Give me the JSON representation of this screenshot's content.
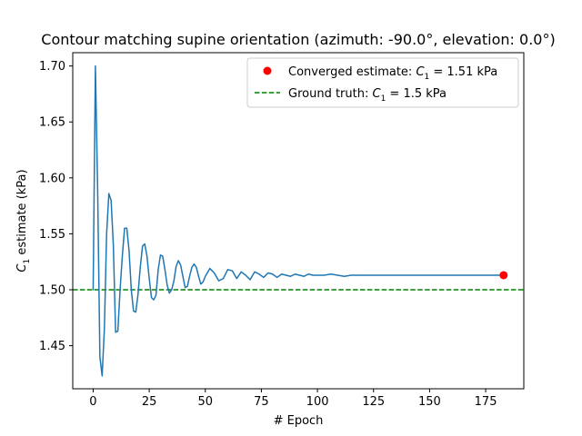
{
  "chart_data": {
    "type": "line",
    "title": "Contour matching supine orientation (azimuth: -90.0°, elevation: 0.0°)",
    "xlabel": "# Epoch",
    "ylabel": "C1 estimate (kPa)",
    "ylabel_parts": {
      "base": "C",
      "sub": "1",
      "rest": " estimate (kPa)"
    },
    "xlim": [
      -9.1,
      192
    ],
    "ylim": [
      1.4115,
      1.7119
    ],
    "xticks": [
      0,
      25,
      50,
      75,
      100,
      125,
      150,
      175
    ],
    "xtick_labels": [
      "0",
      "25",
      "50",
      "75",
      "100",
      "125",
      "150",
      "175"
    ],
    "yticks": [
      1.45,
      1.5,
      1.55,
      1.6,
      1.65,
      1.7
    ],
    "ytick_labels": [
      "1.45",
      "1.50",
      "1.55",
      "1.60",
      "1.65",
      "1.70"
    ],
    "grid": false,
    "legend_position": "top-right",
    "series": [
      {
        "name": "C1 estimate",
        "color": "#1f77b4",
        "style": "line",
        "x": [
          0,
          1,
          2,
          3,
          4,
          5,
          6,
          7,
          8,
          9,
          10,
          11,
          12,
          13,
          14,
          15,
          16,
          17,
          18,
          19,
          20,
          21,
          22,
          23,
          24,
          25,
          26,
          27,
          28,
          29,
          30,
          31,
          32,
          33,
          34,
          35,
          36,
          37,
          38,
          39,
          40,
          41,
          42,
          43,
          44,
          45,
          46,
          47,
          48,
          49,
          50,
          52,
          54,
          56,
          58,
          60,
          62,
          64,
          66,
          68,
          70,
          72,
          74,
          76,
          78,
          80,
          82,
          84,
          86,
          88,
          90,
          92,
          94,
          96,
          98,
          100,
          103,
          106,
          109,
          112,
          115,
          118,
          121,
          124,
          127,
          130,
          135,
          140,
          150,
          160,
          170,
          183
        ],
        "y": [
          1.5,
          1.7,
          1.59,
          1.44,
          1.423,
          1.465,
          1.55,
          1.586,
          1.58,
          1.54,
          1.462,
          1.463,
          1.5,
          1.53,
          1.555,
          1.555,
          1.535,
          1.5,
          1.481,
          1.48,
          1.496,
          1.52,
          1.539,
          1.541,
          1.53,
          1.51,
          1.493,
          1.491,
          1.495,
          1.518,
          1.531,
          1.53,
          1.518,
          1.504,
          1.497,
          1.5,
          1.508,
          1.521,
          1.526,
          1.522,
          1.512,
          1.502,
          1.503,
          1.512,
          1.52,
          1.523,
          1.52,
          1.512,
          1.505,
          1.507,
          1.512,
          1.519,
          1.515,
          1.508,
          1.51,
          1.518,
          1.517,
          1.51,
          1.516,
          1.513,
          1.509,
          1.516,
          1.514,
          1.511,
          1.515,
          1.514,
          1.511,
          1.514,
          1.513,
          1.512,
          1.514,
          1.513,
          1.512,
          1.514,
          1.513,
          1.513,
          1.513,
          1.514,
          1.513,
          1.512,
          1.513,
          1.513,
          1.513,
          1.513,
          1.513,
          1.513,
          1.513,
          1.513,
          1.513,
          1.513,
          1.513,
          1.513
        ]
      },
      {
        "name": "Converged estimate: C1 = 1.51 kPa",
        "name_parts": {
          "base": "Converged estimate: ",
          "var": "C",
          "sub": "1",
          "rest": " = 1.51 kPa"
        },
        "color": "#ff0000",
        "style": "point",
        "x": [
          183
        ],
        "y": [
          1.513
        ]
      },
      {
        "name": "Ground truth: C1 = 1.5 kPa",
        "name_parts": {
          "base": "Ground truth: ",
          "var": "C",
          "sub": "1",
          "rest": " = 1.5 kPa"
        },
        "color": "#008000",
        "style": "hline-dashed",
        "y": [
          1.5
        ]
      }
    ]
  }
}
